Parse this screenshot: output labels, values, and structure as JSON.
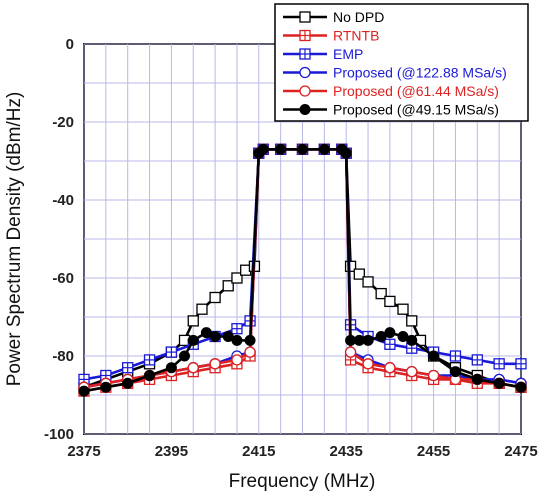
{
  "chart_data": {
    "type": "line",
    "xlabel": "Frequency (MHz)",
    "ylabel": "Power Spectrum Density (dBm/Hz)",
    "xlim": [
      2375,
      2475
    ],
    "ylim": [
      -100,
      0
    ],
    "xticks": [
      2375,
      2395,
      2415,
      2435,
      2455,
      2475
    ],
    "yticks": [
      0,
      -20,
      -40,
      -60,
      -80,
      -100
    ],
    "xtick_labels": [
      "2375",
      "2395",
      "2415",
      "2435",
      "2455",
      "2475"
    ],
    "ytick_labels": [
      "0",
      "-20",
      "-40",
      "-60",
      "-80",
      "-100"
    ],
    "grid": true,
    "legend_position": "top-right",
    "series": [
      {
        "name": "No DPD",
        "color": "#000000",
        "marker": "square",
        "x": [
          2375,
          2380,
          2385,
          2390,
          2395,
          2398,
          2400,
          2402,
          2405,
          2408,
          2410,
          2412,
          2414,
          2415,
          2416,
          2420,
          2425,
          2430,
          2434,
          2435,
          2436,
          2438,
          2440,
          2443,
          2445,
          2448,
          2450,
          2452,
          2455,
          2460,
          2465,
          2470,
          2475
        ],
        "y": [
          -88,
          -86,
          -84,
          -82,
          -79,
          -76,
          -71,
          -68,
          -65,
          -62,
          -60,
          -58,
          -57,
          -28,
          -27,
          -27,
          -27,
          -27,
          -27,
          -28,
          -57,
          -59,
          -61,
          -64,
          -66,
          -68,
          -71,
          -76,
          -80,
          -83,
          -85,
          -87,
          -88
        ]
      },
      {
        "name": "RTNTB",
        "color": "#dd2222",
        "marker": "square-plus",
        "x": [
          2375,
          2380,
          2385,
          2390,
          2395,
          2400,
          2405,
          2410,
          2413,
          2415,
          2416,
          2420,
          2425,
          2430,
          2434,
          2435,
          2436,
          2440,
          2445,
          2450,
          2455,
          2460,
          2465,
          2470,
          2475
        ],
        "y": [
          -89,
          -88,
          -87,
          -86,
          -85,
          -84,
          -83,
          -82,
          -80,
          -28,
          -27,
          -27,
          -27,
          -27,
          -27,
          -28,
          -81,
          -83,
          -84,
          -85,
          -86,
          -86,
          -87,
          -87,
          -88
        ]
      },
      {
        "name": "EMP",
        "color": "#1a1ad6",
        "marker": "square-plus",
        "x": [
          2375,
          2380,
          2385,
          2390,
          2395,
          2400,
          2405,
          2410,
          2413,
          2415,
          2416,
          2420,
          2425,
          2430,
          2434,
          2435,
          2436,
          2440,
          2445,
          2450,
          2455,
          2460,
          2465,
          2470,
          2475
        ],
        "y": [
          -86,
          -85,
          -83,
          -81,
          -79,
          -77,
          -75,
          -73,
          -71,
          -28,
          -27,
          -27,
          -27,
          -27,
          -27,
          -28,
          -72,
          -75,
          -77,
          -78,
          -79,
          -80,
          -81,
          -82,
          -82
        ]
      },
      {
        "name": "Proposed (@122.88 MSa/s)",
        "color": "#1a1ad6",
        "marker": "circle-open",
        "x": [
          2375,
          2380,
          2385,
          2390,
          2395,
          2400,
          2405,
          2410,
          2413,
          2415,
          2416,
          2420,
          2425,
          2430,
          2434,
          2435,
          2436,
          2440,
          2445,
          2450,
          2455,
          2460,
          2465,
          2470,
          2475
        ],
        "y": [
          -88,
          -87,
          -86,
          -85,
          -84,
          -83,
          -82,
          -80,
          -79,
          -28,
          -27,
          -27,
          -27,
          -27,
          -27,
          -28,
          -79,
          -81,
          -83,
          -84,
          -85,
          -85,
          -86,
          -86,
          -87
        ]
      },
      {
        "name": "Proposed (@61.44 MSa/s)",
        "color": "#dd2222",
        "marker": "circle-open",
        "x": [
          2375,
          2380,
          2385,
          2390,
          2395,
          2400,
          2405,
          2410,
          2413,
          2415,
          2416,
          2420,
          2425,
          2430,
          2434,
          2435,
          2436,
          2440,
          2445,
          2450,
          2455,
          2460,
          2465,
          2470,
          2475
        ],
        "y": [
          -88,
          -87,
          -86,
          -85,
          -84,
          -83,
          -82,
          -81,
          -79,
          -28,
          -27,
          -27,
          -27,
          -27,
          -27,
          -28,
          -79,
          -82,
          -83,
          -84,
          -85,
          -86,
          -86,
          -87,
          -88
        ]
      },
      {
        "name": "Proposed (@49.15 MSa/s)",
        "color": "#000000",
        "marker": "circle-filled",
        "x": [
          2375,
          2380,
          2385,
          2390,
          2395,
          2398,
          2400,
          2403,
          2405,
          2408,
          2410,
          2413,
          2415,
          2416,
          2420,
          2425,
          2430,
          2434,
          2435,
          2436,
          2438,
          2440,
          2443,
          2445,
          2448,
          2450,
          2455,
          2460,
          2465,
          2470,
          2475
        ],
        "y": [
          -89,
          -88,
          -87,
          -85,
          -83,
          -80,
          -76,
          -74,
          -75,
          -75,
          -76,
          -76,
          -28,
          -27,
          -27,
          -27,
          -27,
          -27,
          -28,
          -76,
          -76,
          -76,
          -75,
          -74,
          -75,
          -76,
          -80,
          -84,
          -86,
          -87,
          -88
        ]
      }
    ]
  }
}
